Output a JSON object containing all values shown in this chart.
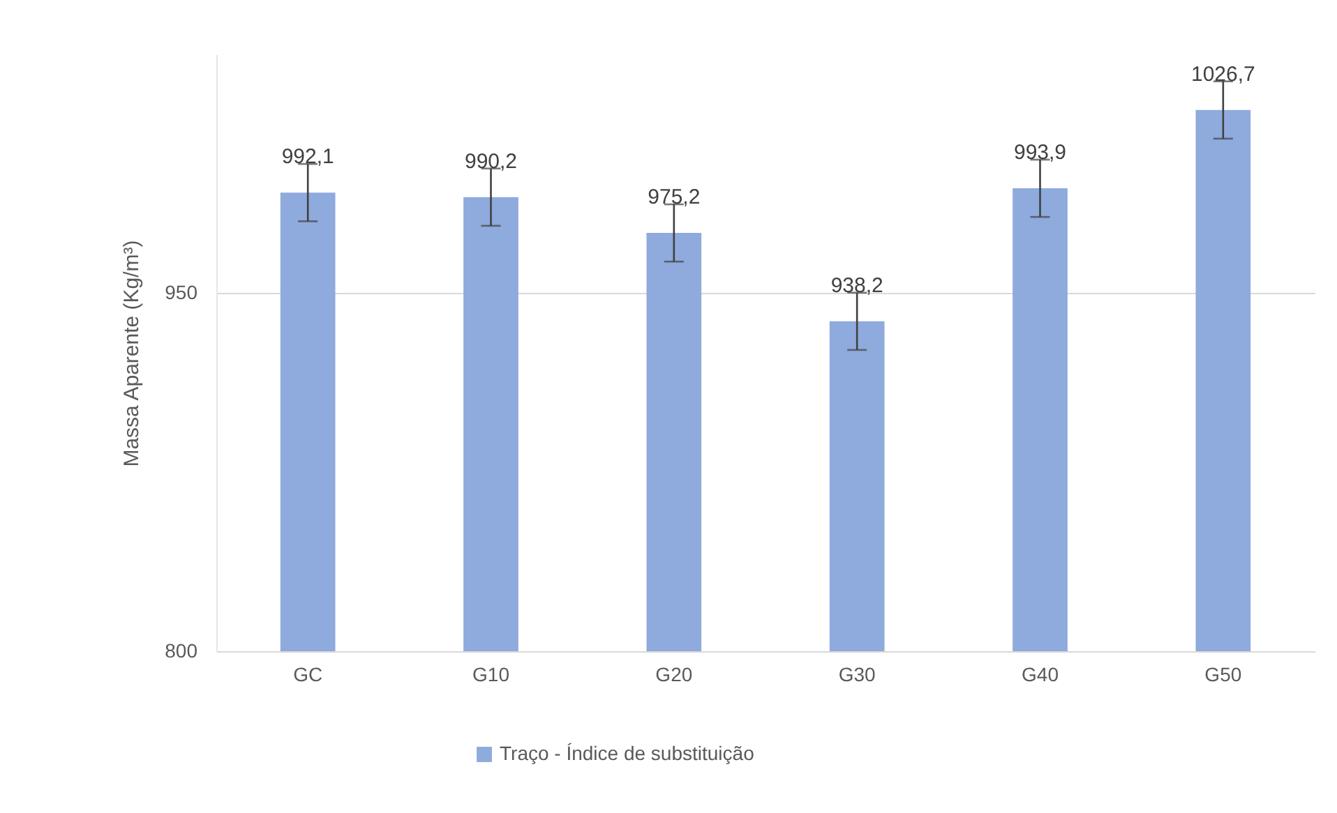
{
  "chart_data": {
    "type": "bar",
    "ylabel": "Massa Aparente (Kg/m³)",
    "categories": [
      "GC",
      "G10",
      "G20",
      "G30",
      "G40",
      "G50"
    ],
    "series": [
      {
        "name": "Traço - Índice de substituição",
        "color": "#8faadc",
        "values": [
          992.1,
          990.2,
          975.2,
          938.2,
          993.9,
          1026.7
        ],
        "errors": [
          12,
          12,
          12,
          12,
          12,
          12
        ],
        "value_labels": [
          "992,1",
          "990,2",
          "975,2",
          "938,2",
          "993,9",
          "1026,7"
        ]
      }
    ],
    "ylim": [
      800,
      1050
    ],
    "yticks": [
      800,
      950
    ],
    "grid": "y",
    "legend": "bottom"
  }
}
